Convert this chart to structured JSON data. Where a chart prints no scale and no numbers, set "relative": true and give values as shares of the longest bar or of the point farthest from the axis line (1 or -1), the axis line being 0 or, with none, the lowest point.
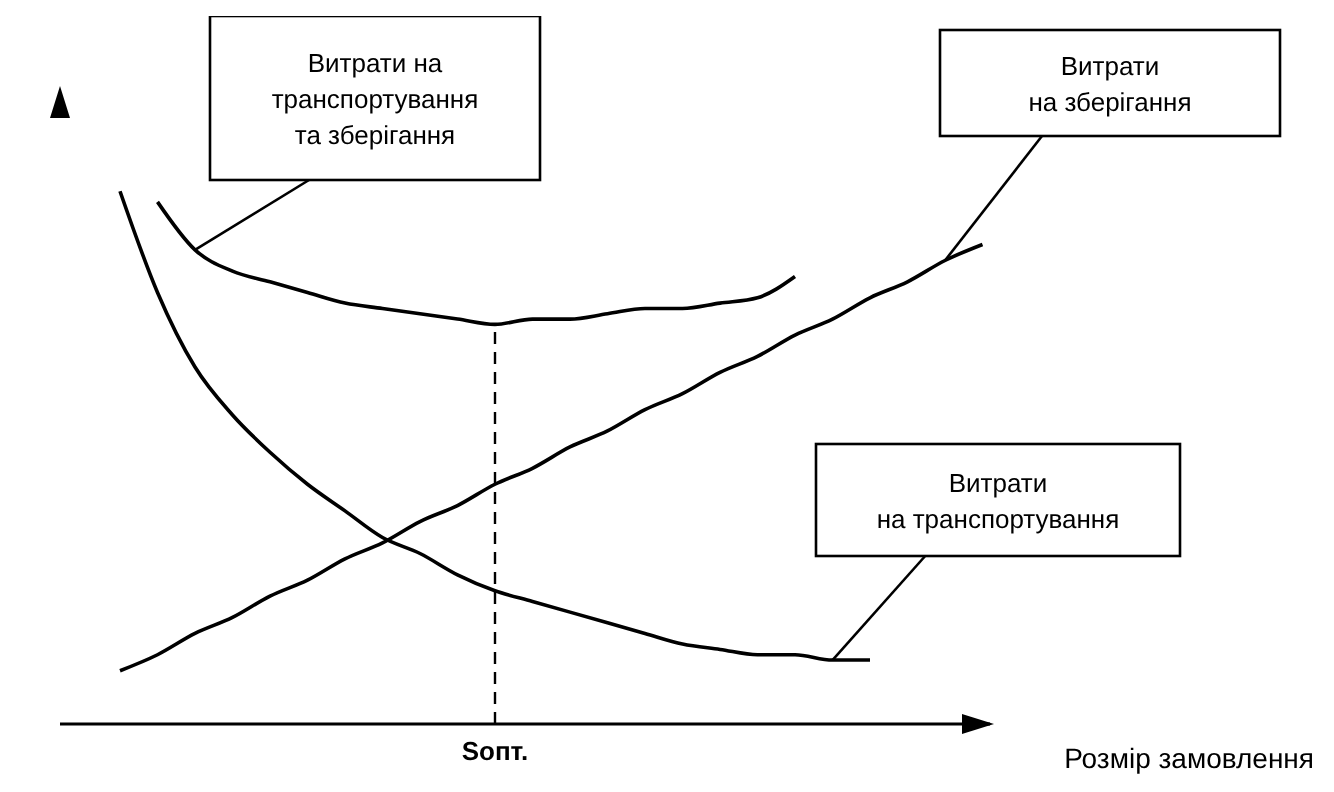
{
  "chart_data": {
    "type": "line",
    "relative": true,
    "xlabel": "Розмір замовлення",
    "categories": [
      null,
      null,
      null,
      null,
      null,
      null,
      null,
      null,
      null,
      null,
      null,
      null,
      null,
      null,
      null,
      null,
      null,
      null,
      null,
      null,
      null,
      null,
      null,
      null
    ],
    "series": [
      {
        "name": "Витрати на\nтранспортування\nта зберігання",
        "color": "#000000",
        "values": [
          null,
          0.98,
          0.89,
          0.85,
          0.83,
          0.81,
          0.79,
          0.78,
          0.77,
          0.76,
          0.75,
          0.76,
          0.76,
          0.77,
          0.78,
          0.78,
          0.79,
          0.8,
          0.84,
          null,
          null,
          null,
          null,
          null
        ]
      },
      {
        "name": "Витрати\nна зберігання",
        "color": "#000000",
        "values": [
          0.1,
          0.13,
          0.17,
          0.2,
          0.24,
          0.27,
          0.31,
          0.34,
          0.38,
          0.41,
          0.45,
          0.48,
          0.52,
          0.55,
          0.59,
          0.62,
          0.66,
          0.69,
          0.73,
          0.76,
          0.8,
          0.83,
          0.87,
          0.9
        ]
      },
      {
        "name": "Витрати\nна транспортування",
        "color": "#000000",
        "values": [
          1.0,
          0.81,
          0.67,
          0.58,
          0.51,
          0.45,
          0.4,
          0.35,
          0.32,
          0.28,
          0.25,
          0.23,
          0.21,
          0.19,
          0.17,
          0.15,
          0.14,
          0.13,
          0.13,
          0.12,
          0.12,
          null,
          null,
          null
        ]
      }
    ],
    "ref_lines": [
      {
        "axis": "x",
        "label": "Sопт.",
        "line_style": "dashed",
        "color": "#000000"
      }
    ],
    "legend": false,
    "grid": false,
    "marker": "none",
    "line_style": "solid"
  }
}
